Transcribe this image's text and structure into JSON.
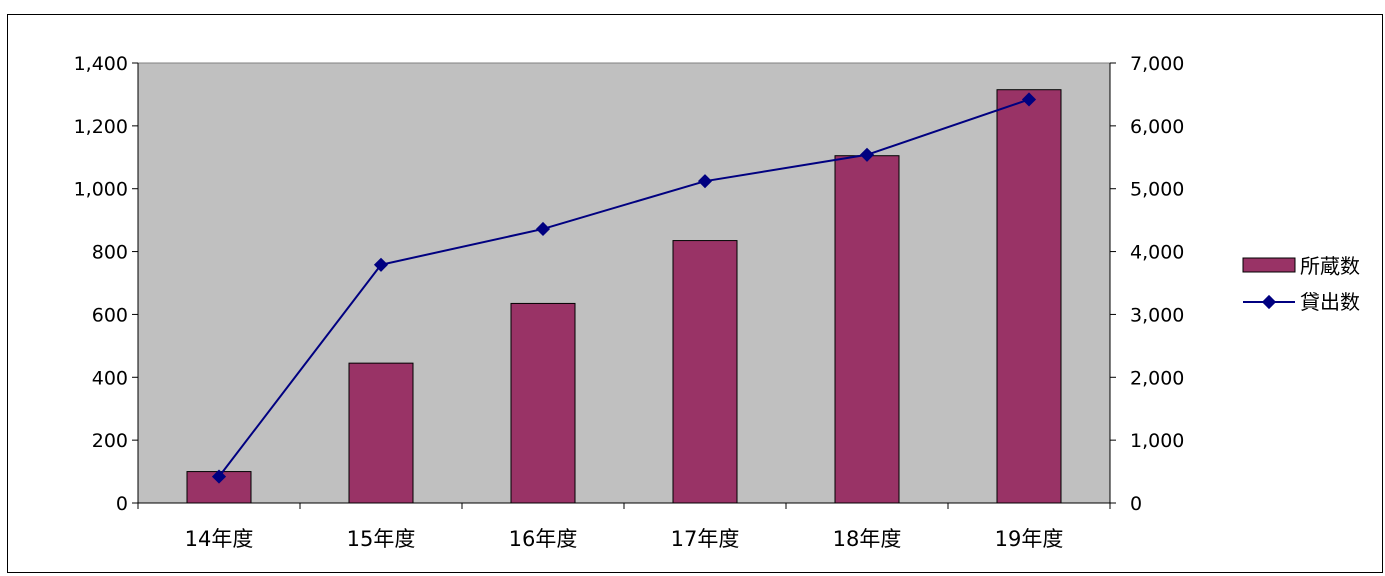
{
  "chart_data": {
    "type": "bar",
    "categories": [
      "14年度",
      "15年度",
      "16年度",
      "17年度",
      "18年度",
      "19年度"
    ],
    "series": [
      {
        "name": "所蔵数",
        "type": "bar",
        "axis": "left",
        "values": [
          100,
          445,
          635,
          835,
          1105,
          1315
        ],
        "color": "#993366"
      },
      {
        "name": "貸出数",
        "type": "line",
        "axis": "right",
        "values": [
          420,
          3790,
          4360,
          5120,
          5540,
          6420
        ],
        "color": "#000080"
      }
    ],
    "y_left": {
      "min": 0,
      "max": 1400,
      "step": 200,
      "ticks": [
        "0",
        "200",
        "400",
        "600",
        "800",
        "1,000",
        "1,200",
        "1,400"
      ]
    },
    "y_right": {
      "min": 0,
      "max": 7000,
      "step": 1000,
      "ticks": [
        "0",
        "1,000",
        "2,000",
        "3,000",
        "4,000",
        "5,000",
        "6,000",
        "7,000"
      ]
    },
    "plot_background": "#C0C0C0",
    "grid": false,
    "legend_position": "right"
  }
}
